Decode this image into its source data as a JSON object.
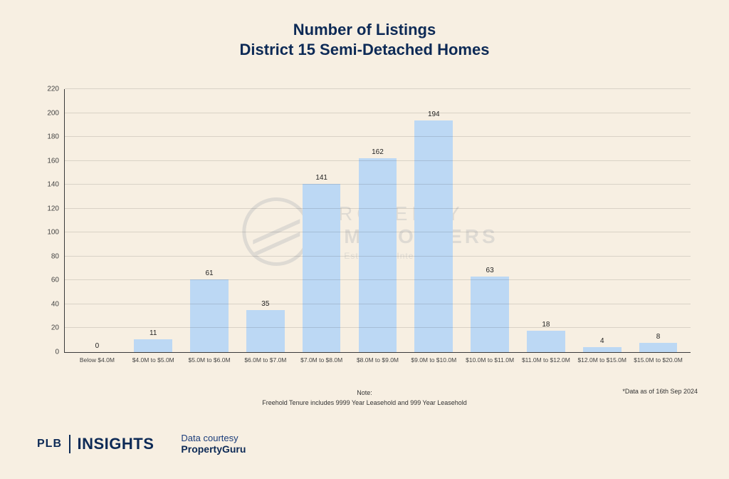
{
  "colors": {
    "page_bg": "#f7efe2",
    "title": "#0d2a56",
    "axis": "#3a3a3a",
    "grid": "rgba(0,0,0,0.12)",
    "bar_fill": "#bcd8f4",
    "bar_label": "#222222",
    "tick_label": "#444444",
    "note_text": "#333333",
    "brand": "#0d2a56",
    "courtesy_label": "#1a3c7a",
    "courtesy_value": "#0d2a56",
    "watermark": "#0d2a56"
  },
  "title": {
    "line1": "Number of Listings",
    "line2": "District 15 Semi-Detached Homes",
    "fontsize": 22
  },
  "chart": {
    "type": "bar",
    "ylim": [
      0,
      220
    ],
    "ytick_step": 20,
    "yticks": [
      0,
      20,
      40,
      60,
      80,
      100,
      120,
      140,
      160,
      180,
      200,
      220
    ],
    "bar_width_ratio": 0.68,
    "categories": [
      "Below $4.0M",
      "$4.0M to $5.0M",
      "$5.0M to $6.0M",
      "$6.0M to $7.0M",
      "$7.0M to $8.0M",
      "$8.0M to $9.0M",
      "$9.0M to $10.0M",
      "$10.0M to $11.0M",
      "$11.0M to $12.0M",
      "$12.0M to $15.0M",
      "$15.0M to $20.0M"
    ],
    "values": [
      0,
      11,
      61,
      35,
      141,
      162,
      194,
      63,
      18,
      4,
      8
    ],
    "xtick_fontsize": 8.5,
    "ytick_fontsize": 10,
    "barlabel_fontsize": 10
  },
  "watermark": {
    "line1": "PROPERTY",
    "line2": "LIMBROTHERS",
    "line3": "Real Estate with Integrity",
    "opacity": 0.1
  },
  "notes": {
    "heading": "Note:",
    "body": "Freehold Tenure includes 9999 Year Leasehold and 999 Year Leasehold",
    "data_asof": "*Data as of 16th Sep 2024"
  },
  "footer": {
    "brand_plb": "PLB",
    "brand_insights": "INSIGHTS",
    "courtesy_label": "Data courtesy",
    "courtesy_value": "PropertyGuru"
  }
}
